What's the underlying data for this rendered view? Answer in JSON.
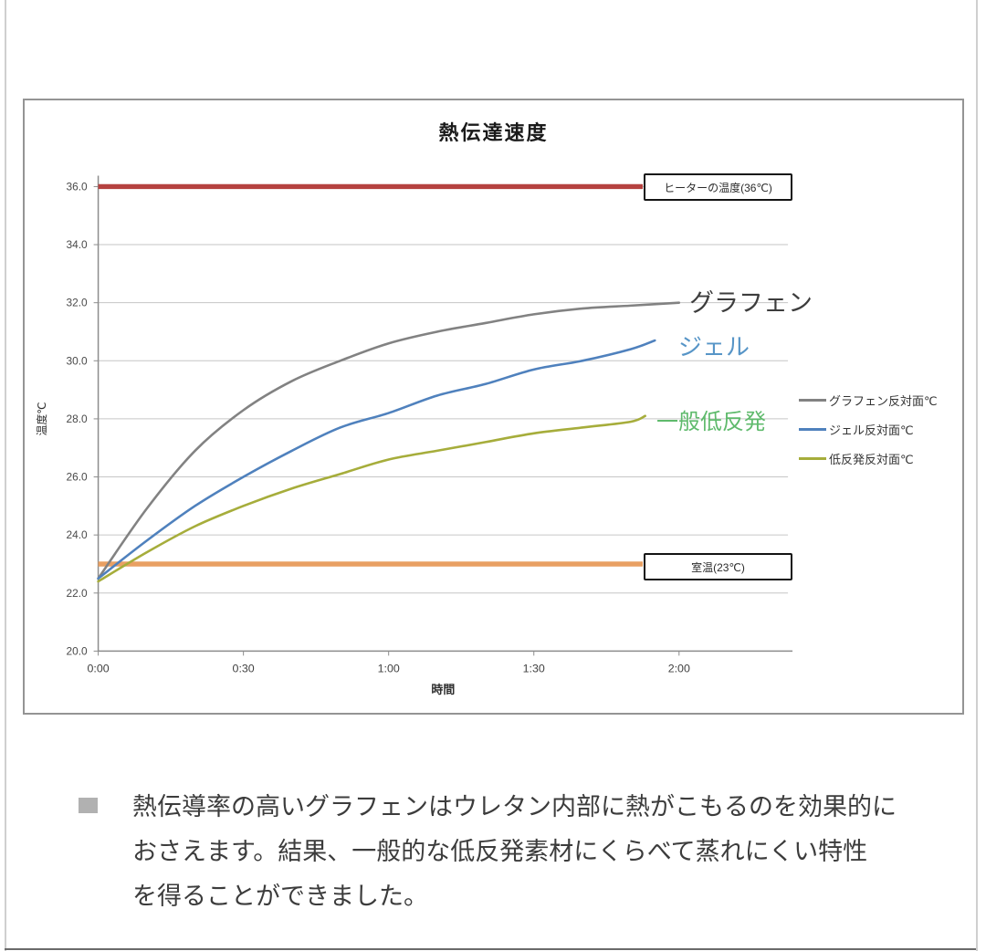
{
  "page": {
    "background": "#ffffff",
    "edge_line_color": "#cfcfcf"
  },
  "chart_data": {
    "type": "line",
    "title": "熱伝達速度",
    "xlabel": "時間",
    "ylabel": "温度℃",
    "x_unit": "minutes",
    "xlim_minutes": [
      0,
      142
    ],
    "ylim": [
      20,
      36
    ],
    "grid": true,
    "legend_position": "right",
    "y_ticks": [
      36,
      34,
      32,
      30,
      28,
      26,
      24,
      22,
      20
    ],
    "y_tick_labels": [
      "36.0",
      "34.0",
      "32.0",
      "30.0",
      "28.0",
      "26.0",
      "24.0",
      "22.0",
      "20.0"
    ],
    "x_ticks_minutes": [
      0,
      30,
      60,
      90,
      120
    ],
    "x_tick_labels": [
      "0:00",
      "0:30",
      "1:00",
      "1:30",
      "2:00"
    ],
    "reference_lines": [
      {
        "label": "ヒーターの温度(36℃)",
        "value": 36.0,
        "color": "#b5413f"
      },
      {
        "label": "室温(23℃)",
        "value": 23.0,
        "color": "#e9a063"
      }
    ],
    "series": [
      {
        "name": "グラフェン反対面℃",
        "end_label": "グラフェン",
        "color": "#828282",
        "end_label_color": "#3d3d3d",
        "points": [
          [
            0,
            22.5
          ],
          [
            10,
            24.9
          ],
          [
            20,
            26.9
          ],
          [
            30,
            28.3
          ],
          [
            40,
            29.3
          ],
          [
            50,
            30.0
          ],
          [
            60,
            30.6
          ],
          [
            70,
            31.0
          ],
          [
            80,
            31.3
          ],
          [
            90,
            31.6
          ],
          [
            100,
            31.8
          ],
          [
            110,
            31.9
          ],
          [
            120,
            32.0
          ]
        ]
      },
      {
        "name": "ジェル反対面℃",
        "end_label": "ジェル",
        "color": "#4f81bd",
        "end_label_color": "#5795c7",
        "points": [
          [
            0,
            22.5
          ],
          [
            10,
            23.8
          ],
          [
            20,
            25.0
          ],
          [
            30,
            26.0
          ],
          [
            40,
            26.9
          ],
          [
            50,
            27.7
          ],
          [
            60,
            28.2
          ],
          [
            70,
            28.8
          ],
          [
            80,
            29.2
          ],
          [
            90,
            29.7
          ],
          [
            100,
            30.0
          ],
          [
            110,
            30.4
          ],
          [
            115,
            30.7
          ]
        ]
      },
      {
        "name": "低反発反対面℃",
        "end_label": "一般低反発",
        "color": "#a6ad3b",
        "end_label_color": "#5fba6c",
        "points": [
          [
            0,
            22.4
          ],
          [
            10,
            23.4
          ],
          [
            20,
            24.3
          ],
          [
            30,
            25.0
          ],
          [
            40,
            25.6
          ],
          [
            50,
            26.1
          ],
          [
            60,
            26.6
          ],
          [
            70,
            26.9
          ],
          [
            80,
            27.2
          ],
          [
            90,
            27.5
          ],
          [
            100,
            27.7
          ],
          [
            110,
            27.9
          ],
          [
            113,
            28.1
          ]
        ]
      }
    ]
  },
  "caption": {
    "lines": [
      "熱伝導率の高いグラフェンはウレタン内部に熱がこもるのを効果的に",
      "おさえます。結果、一般的な低反発素材にくらべて蒸れにくい特性",
      "を得ることができました。"
    ]
  }
}
